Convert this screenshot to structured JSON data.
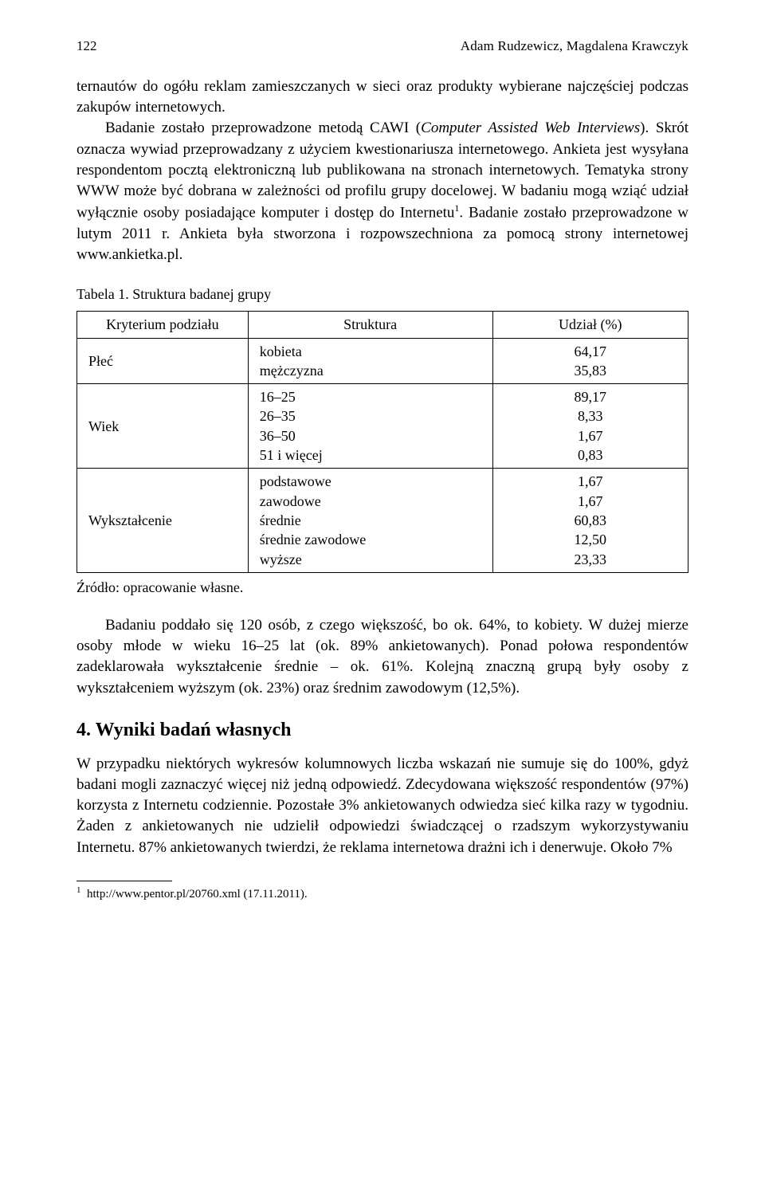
{
  "header": {
    "page_number": "122",
    "authors": "Adam Rudzewicz, Magdalena Krawczyk"
  },
  "paragraph_1_html": "ternautów do ogółu reklam zamieszczanych w sieci oraz produkty wybierane najczęściej podczas zakupów internetowych.",
  "paragraph_2_html": "Badanie zostało przeprowadzone metodą CAWI (<span class=\"italic\">Computer Assisted Web Interviews</span>). Skrót oznacza wywiad przeprowadzany z użyciem kwestionariusza internetowego. Ankieta jest wysyłana respondentom pocztą elektroniczną lub publikowana na stronach internetowych. Tematyka strony WWW może być dobrana w zależności od profilu grupy docelowej. W badaniu mogą wziąć udział wyłącznie osoby posiadające komputer i dostęp do Internetu<sup>1</sup>. Badanie zostało przeprowadzone w lutym 2011 r. Ankieta była stworzona i rozpowszechniona za pomocą strony internetowej www.ankietka.pl.",
  "table": {
    "caption": "Tabela 1. Struktura badanej grupy",
    "columns": [
      "Kryterium podziału",
      "Struktura",
      "Udział (%)"
    ],
    "rows": [
      {
        "criterion": "Płeć",
        "structure": [
          "kobieta",
          "mężczyzna"
        ],
        "share": [
          "64,17",
          "35,83"
        ]
      },
      {
        "criterion": "Wiek",
        "structure": [
          "16–25",
          "26–35",
          "36–50",
          "51 i więcej"
        ],
        "share": [
          "89,17",
          "8,33",
          "1,67",
          "0,83"
        ]
      },
      {
        "criterion": "Wykształcenie",
        "structure": [
          "podstawowe",
          "zawodowe",
          "średnie",
          "średnie zawodowe",
          "wyższe"
        ],
        "share": [
          "1,67",
          "1,67",
          "60,83",
          "12,50",
          "23,33"
        ]
      }
    ],
    "source": "Źródło: opracowanie własne."
  },
  "paragraph_3": "Badaniu poddało się 120 osób, z czego większość, bo ok. 64%, to kobiety. W dużej mierze osoby młode w wieku 16–25 lat (ok. 89% ankietowanych). Ponad połowa respondentów zadeklarowała wykształcenie średnie – ok. 61%. Kolejną znaczną grupą były osoby z wykształceniem wyższym (ok. 23%) oraz średnim zawodowym (12,5%).",
  "section_heading": "4. Wyniki badań własnych",
  "paragraph_4": "W przypadku niektórych wykresów kolumnowych liczba wskazań nie sumuje się do 100%, gdyż badani mogli zaznaczyć więcej niż jedną odpowiedź. Zdecydowana większość respondentów (97%) korzysta z Internetu codziennie. Pozostałe 3% ankietowanych odwiedza sieć kilka razy w tygodniu. Żaden z ankietowanych nie udzielił odpowiedzi świadczącej o rzadszym wykorzystywaniu Internetu. 87% ankietowanych twierdzi, że reklama internetowa drażni ich i denerwuje. Około 7%",
  "footnote_html": "<sup>1</sup>&nbsp;&nbsp;http://www.pentor.pl/20760.xml (17.11.2011)."
}
